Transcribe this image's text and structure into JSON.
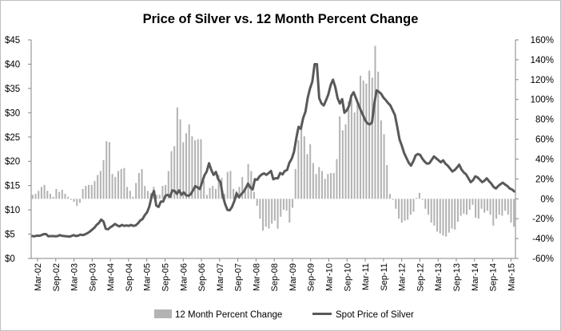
{
  "chart_data": {
    "type": "bar+line",
    "title": "Price of Silver vs. 12 Month Percent Change",
    "x_tick_labels": [
      "Mar-02",
      "Sep-02",
      "Mar-03",
      "Sep-03",
      "Mar-04",
      "Sep-04",
      "Mar-05",
      "Sep-05",
      "Mar-06",
      "Sep-06",
      "Mar-07",
      "Sep-07",
      "Mar-08",
      "Sep-08",
      "Mar-09",
      "Sep-09",
      "Mar-10",
      "Sep-10",
      "Mar-11",
      "Sep-11",
      "Mar-12",
      "Sep-12",
      "Mar-13",
      "Sep-13",
      "Mar-14",
      "Sep-14",
      "Mar-15"
    ],
    "y_left": {
      "ticks": [
        "$0",
        "$5",
        "$10",
        "$15",
        "$20",
        "$25",
        "$30",
        "$35",
        "$40",
        "$45"
      ],
      "ylim": [
        0,
        45
      ]
    },
    "y_right": {
      "ticks": [
        "-60%",
        "-40%",
        "-20%",
        "0%",
        "20%",
        "40%",
        "60%",
        "80%",
        "100%",
        "120%",
        "140%",
        "160%"
      ],
      "ylim": [
        -60,
        160
      ]
    },
    "series": [
      {
        "name": "12 Month Percent Change",
        "kind": "bar",
        "axis": "right",
        "color": "#b3b3b3",
        "values": [
          4,
          5,
          8,
          12,
          14,
          8,
          5,
          2,
          10,
          7,
          9,
          5,
          2,
          -1,
          -3,
          -7,
          -4,
          10,
          13,
          14,
          14,
          18,
          24,
          28,
          39,
          58,
          57,
          25,
          22,
          28,
          30,
          31,
          12,
          8,
          2,
          16,
          26,
          30,
          13,
          8,
          6,
          12,
          4,
          4,
          13,
          14,
          28,
          48,
          53,
          92,
          80,
          57,
          66,
          75,
          63,
          59,
          60,
          60,
          18,
          4,
          11,
          13,
          10,
          24,
          21,
          5,
          27,
          28,
          10,
          8,
          12,
          22,
          10,
          35,
          28,
          7,
          -7,
          -20,
          -32,
          -28,
          -30,
          -25,
          -22,
          -30,
          -18,
          -11,
          -12,
          -24,
          -9,
          30,
          59,
          76,
          63,
          45,
          55,
          36,
          25,
          32,
          28,
          20,
          25,
          26,
          26,
          40,
          83,
          69,
          75,
          98,
          100,
          87,
          98,
          124,
          119,
          116,
          129,
          122,
          154,
          128,
          79,
          65,
          34,
          5,
          -1,
          -10,
          -20,
          -24,
          -22,
          -21,
          -16,
          -13,
          1,
          6,
          -1,
          -10,
          -16,
          -24,
          -27,
          -33,
          -35,
          -37,
          -38,
          -34,
          -30,
          -31,
          -23,
          -17,
          -15,
          -16,
          -11,
          -6,
          -19,
          -20,
          -10,
          -14,
          -12,
          -16,
          -27,
          -20,
          -16,
          -17,
          -12,
          -16,
          -24,
          -28
        ]
      },
      {
        "name": "Spot Price of Silver",
        "kind": "line",
        "axis": "left",
        "color": "#595959",
        "values": [
          4.6,
          4.55,
          4.7,
          4.65,
          4.8,
          5.0,
          5.0,
          4.55,
          4.6,
          4.6,
          4.55,
          4.6,
          4.8,
          4.65,
          4.6,
          4.55,
          4.5,
          4.6,
          4.8,
          4.6,
          4.7,
          4.9,
          4.8,
          4.95,
          5.2,
          5.5,
          5.9,
          6.3,
          6.9,
          7.3,
          8.0,
          7.6,
          6.1,
          6.0,
          6.4,
          6.7,
          7.1,
          6.8,
          6.6,
          6.9,
          6.7,
          6.8,
          6.7,
          6.9,
          6.7,
          6.8,
          7.2,
          7.8,
          8.1,
          8.9,
          9.5,
          10.7,
          12.8,
          13.9,
          10.9,
          10.6,
          11.7,
          11.7,
          12.9,
          13.1,
          12.7,
          14.0,
          13.9,
          13.3,
          14.0,
          13.1,
          13.6,
          13.0,
          12.9,
          13.2,
          14.0,
          14.9,
          14.6,
          14.3,
          15.7,
          17.1,
          17.9,
          19.6,
          18.2,
          17.2,
          17.8,
          16.3,
          15.7,
          12.9,
          11.2,
          10.0,
          9.9,
          10.6,
          11.8,
          13.4,
          12.6,
          13.2,
          13.7,
          14.5,
          15.4,
          14.6,
          14.2,
          16.3,
          16.2,
          16.9,
          17.3,
          17.5,
          17.2,
          17.6,
          18.0,
          16.3,
          16.5,
          16.5,
          17.6,
          17.3,
          18.0,
          18.2,
          19.7,
          20.5,
          21.9,
          24.7,
          27.1,
          26.7,
          28.9,
          30.2,
          33.1,
          35.0,
          36.4,
          40.0,
          40.0,
          33.0,
          31.9,
          31.5,
          32.6,
          33.8,
          35.7,
          36.8,
          35.3,
          33.0,
          31.9,
          32.8,
          30.0,
          30.5,
          31.4,
          33.5,
          34.2,
          33.0,
          31.8,
          30.6,
          29.6,
          28.5,
          27.8,
          27.6,
          28.0,
          31.8,
          34.6,
          34.3,
          33.9,
          33.1,
          32.6,
          32.0,
          31.5,
          30.5,
          29.5,
          27.1,
          24.5,
          23.2,
          21.7,
          20.7,
          19.7,
          19.1,
          20.0,
          21.2,
          21.5,
          21.3,
          20.5,
          19.9,
          19.5,
          19.6,
          20.3,
          21.0,
          20.6,
          20.2,
          19.8,
          20.2,
          19.5,
          19.1,
          18.5,
          17.9,
          18.2,
          18.7,
          19.3,
          18.3,
          17.7,
          17.3,
          16.5,
          15.7,
          16.1,
          16.9,
          16.7,
          16.2,
          15.7,
          16.0,
          16.5,
          15.9,
          15.4,
          14.7,
          14.4,
          14.9,
          15.3,
          15.6,
          15.2,
          14.9,
          14.4,
          14.2,
          13.8
        ]
      }
    ],
    "legend": {
      "placement": "bottom",
      "entries": [
        "12 Month Percent Change",
        "Spot Price of Silver"
      ]
    },
    "grid": false
  }
}
